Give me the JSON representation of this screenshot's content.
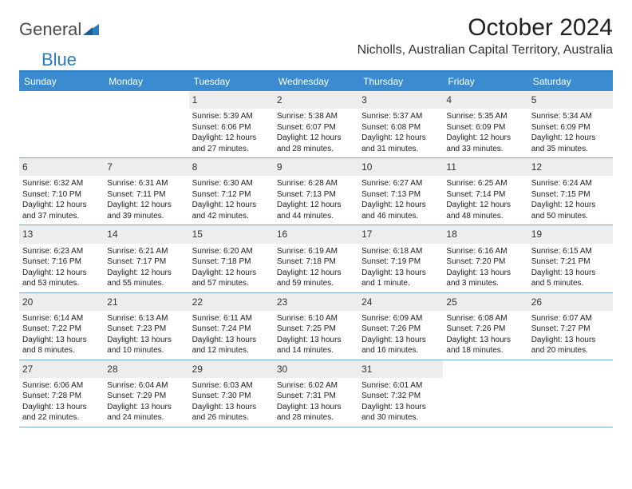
{
  "logo": {
    "part1": "General",
    "part2": "Blue"
  },
  "title": "October 2024",
  "location": "Nicholls, Australian Capital Territory, Australia",
  "colors": {
    "header_bar": "#3b8bd0",
    "accent_line": "#2b7bbf",
    "daynum_bg": "#ededed",
    "week_divider": "#7aa7c9",
    "text": "#222222",
    "logo_gray": "#4a4a4a",
    "logo_blue": "#2b7bbf"
  },
  "weekdays": [
    "Sunday",
    "Monday",
    "Tuesday",
    "Wednesday",
    "Thursday",
    "Friday",
    "Saturday"
  ],
  "weeks": [
    [
      {
        "n": "",
        "sr": "",
        "ss": "",
        "dl1": "",
        "dl2": ""
      },
      {
        "n": "",
        "sr": "",
        "ss": "",
        "dl1": "",
        "dl2": ""
      },
      {
        "n": "1",
        "sr": "Sunrise: 5:39 AM",
        "ss": "Sunset: 6:06 PM",
        "dl1": "Daylight: 12 hours",
        "dl2": "and 27 minutes."
      },
      {
        "n": "2",
        "sr": "Sunrise: 5:38 AM",
        "ss": "Sunset: 6:07 PM",
        "dl1": "Daylight: 12 hours",
        "dl2": "and 28 minutes."
      },
      {
        "n": "3",
        "sr": "Sunrise: 5:37 AM",
        "ss": "Sunset: 6:08 PM",
        "dl1": "Daylight: 12 hours",
        "dl2": "and 31 minutes."
      },
      {
        "n": "4",
        "sr": "Sunrise: 5:35 AM",
        "ss": "Sunset: 6:09 PM",
        "dl1": "Daylight: 12 hours",
        "dl2": "and 33 minutes."
      },
      {
        "n": "5",
        "sr": "Sunrise: 5:34 AM",
        "ss": "Sunset: 6:09 PM",
        "dl1": "Daylight: 12 hours",
        "dl2": "and 35 minutes."
      }
    ],
    [
      {
        "n": "6",
        "sr": "Sunrise: 6:32 AM",
        "ss": "Sunset: 7:10 PM",
        "dl1": "Daylight: 12 hours",
        "dl2": "and 37 minutes."
      },
      {
        "n": "7",
        "sr": "Sunrise: 6:31 AM",
        "ss": "Sunset: 7:11 PM",
        "dl1": "Daylight: 12 hours",
        "dl2": "and 39 minutes."
      },
      {
        "n": "8",
        "sr": "Sunrise: 6:30 AM",
        "ss": "Sunset: 7:12 PM",
        "dl1": "Daylight: 12 hours",
        "dl2": "and 42 minutes."
      },
      {
        "n": "9",
        "sr": "Sunrise: 6:28 AM",
        "ss": "Sunset: 7:13 PM",
        "dl1": "Daylight: 12 hours",
        "dl2": "and 44 minutes."
      },
      {
        "n": "10",
        "sr": "Sunrise: 6:27 AM",
        "ss": "Sunset: 7:13 PM",
        "dl1": "Daylight: 12 hours",
        "dl2": "and 46 minutes."
      },
      {
        "n": "11",
        "sr": "Sunrise: 6:25 AM",
        "ss": "Sunset: 7:14 PM",
        "dl1": "Daylight: 12 hours",
        "dl2": "and 48 minutes."
      },
      {
        "n": "12",
        "sr": "Sunrise: 6:24 AM",
        "ss": "Sunset: 7:15 PM",
        "dl1": "Daylight: 12 hours",
        "dl2": "and 50 minutes."
      }
    ],
    [
      {
        "n": "13",
        "sr": "Sunrise: 6:23 AM",
        "ss": "Sunset: 7:16 PM",
        "dl1": "Daylight: 12 hours",
        "dl2": "and 53 minutes."
      },
      {
        "n": "14",
        "sr": "Sunrise: 6:21 AM",
        "ss": "Sunset: 7:17 PM",
        "dl1": "Daylight: 12 hours",
        "dl2": "and 55 minutes."
      },
      {
        "n": "15",
        "sr": "Sunrise: 6:20 AM",
        "ss": "Sunset: 7:18 PM",
        "dl1": "Daylight: 12 hours",
        "dl2": "and 57 minutes."
      },
      {
        "n": "16",
        "sr": "Sunrise: 6:19 AM",
        "ss": "Sunset: 7:18 PM",
        "dl1": "Daylight: 12 hours",
        "dl2": "and 59 minutes."
      },
      {
        "n": "17",
        "sr": "Sunrise: 6:18 AM",
        "ss": "Sunset: 7:19 PM",
        "dl1": "Daylight: 13 hours",
        "dl2": "and 1 minute."
      },
      {
        "n": "18",
        "sr": "Sunrise: 6:16 AM",
        "ss": "Sunset: 7:20 PM",
        "dl1": "Daylight: 13 hours",
        "dl2": "and 3 minutes."
      },
      {
        "n": "19",
        "sr": "Sunrise: 6:15 AM",
        "ss": "Sunset: 7:21 PM",
        "dl1": "Daylight: 13 hours",
        "dl2": "and 5 minutes."
      }
    ],
    [
      {
        "n": "20",
        "sr": "Sunrise: 6:14 AM",
        "ss": "Sunset: 7:22 PM",
        "dl1": "Daylight: 13 hours",
        "dl2": "and 8 minutes."
      },
      {
        "n": "21",
        "sr": "Sunrise: 6:13 AM",
        "ss": "Sunset: 7:23 PM",
        "dl1": "Daylight: 13 hours",
        "dl2": "and 10 minutes."
      },
      {
        "n": "22",
        "sr": "Sunrise: 6:11 AM",
        "ss": "Sunset: 7:24 PM",
        "dl1": "Daylight: 13 hours",
        "dl2": "and 12 minutes."
      },
      {
        "n": "23",
        "sr": "Sunrise: 6:10 AM",
        "ss": "Sunset: 7:25 PM",
        "dl1": "Daylight: 13 hours",
        "dl2": "and 14 minutes."
      },
      {
        "n": "24",
        "sr": "Sunrise: 6:09 AM",
        "ss": "Sunset: 7:26 PM",
        "dl1": "Daylight: 13 hours",
        "dl2": "and 16 minutes."
      },
      {
        "n": "25",
        "sr": "Sunrise: 6:08 AM",
        "ss": "Sunset: 7:26 PM",
        "dl1": "Daylight: 13 hours",
        "dl2": "and 18 minutes."
      },
      {
        "n": "26",
        "sr": "Sunrise: 6:07 AM",
        "ss": "Sunset: 7:27 PM",
        "dl1": "Daylight: 13 hours",
        "dl2": "and 20 minutes."
      }
    ],
    [
      {
        "n": "27",
        "sr": "Sunrise: 6:06 AM",
        "ss": "Sunset: 7:28 PM",
        "dl1": "Daylight: 13 hours",
        "dl2": "and 22 minutes."
      },
      {
        "n": "28",
        "sr": "Sunrise: 6:04 AM",
        "ss": "Sunset: 7:29 PM",
        "dl1": "Daylight: 13 hours",
        "dl2": "and 24 minutes."
      },
      {
        "n": "29",
        "sr": "Sunrise: 6:03 AM",
        "ss": "Sunset: 7:30 PM",
        "dl1": "Daylight: 13 hours",
        "dl2": "and 26 minutes."
      },
      {
        "n": "30",
        "sr": "Sunrise: 6:02 AM",
        "ss": "Sunset: 7:31 PM",
        "dl1": "Daylight: 13 hours",
        "dl2": "and 28 minutes."
      },
      {
        "n": "31",
        "sr": "Sunrise: 6:01 AM",
        "ss": "Sunset: 7:32 PM",
        "dl1": "Daylight: 13 hours",
        "dl2": "and 30 minutes."
      },
      {
        "n": "",
        "sr": "",
        "ss": "",
        "dl1": "",
        "dl2": ""
      },
      {
        "n": "",
        "sr": "",
        "ss": "",
        "dl1": "",
        "dl2": ""
      }
    ]
  ]
}
